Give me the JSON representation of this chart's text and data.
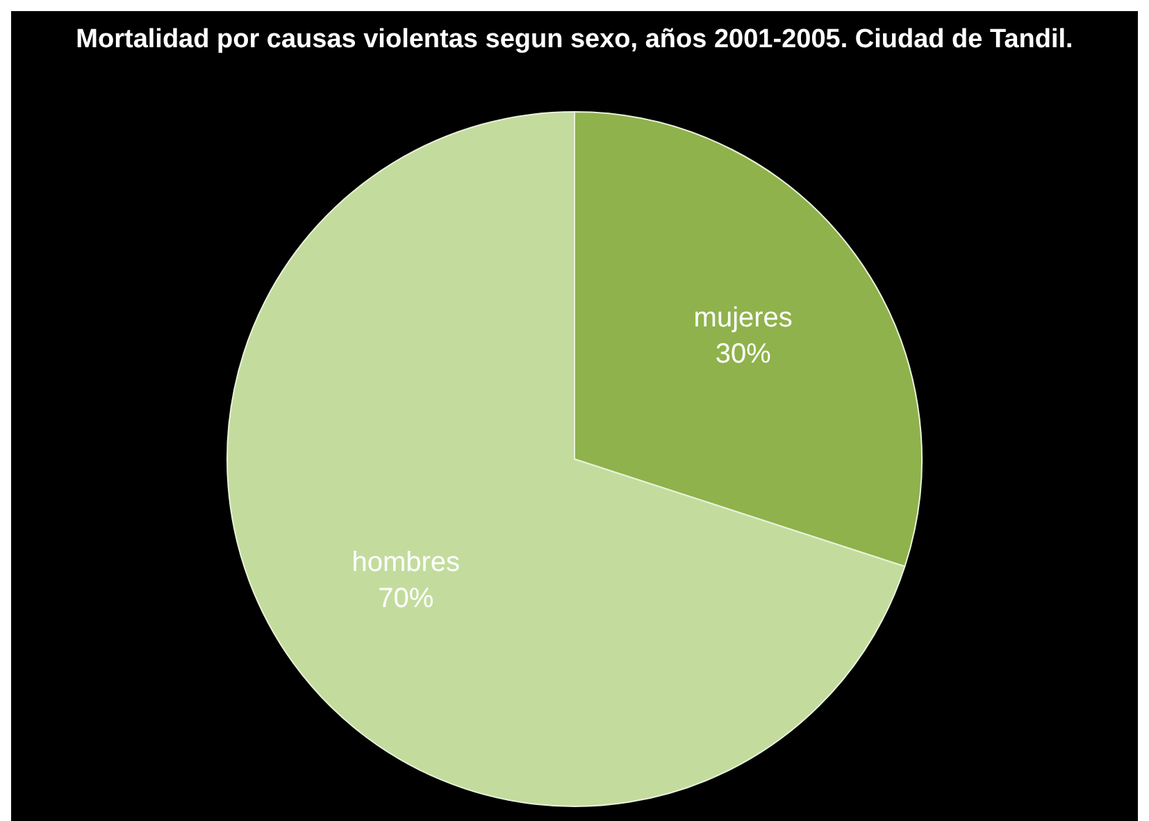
{
  "chart_data": {
    "type": "pie",
    "title": "Mortalidad por causas violentas segun sexo, años 2001-2005. Ciudad de Tandil.",
    "categories": [
      "mujeres",
      "hombres"
    ],
    "values": [
      30,
      70
    ],
    "colors": [
      "#8fb24c",
      "#c3dc9e"
    ],
    "value_labels": [
      "30%",
      "70%"
    ],
    "legend": false
  }
}
